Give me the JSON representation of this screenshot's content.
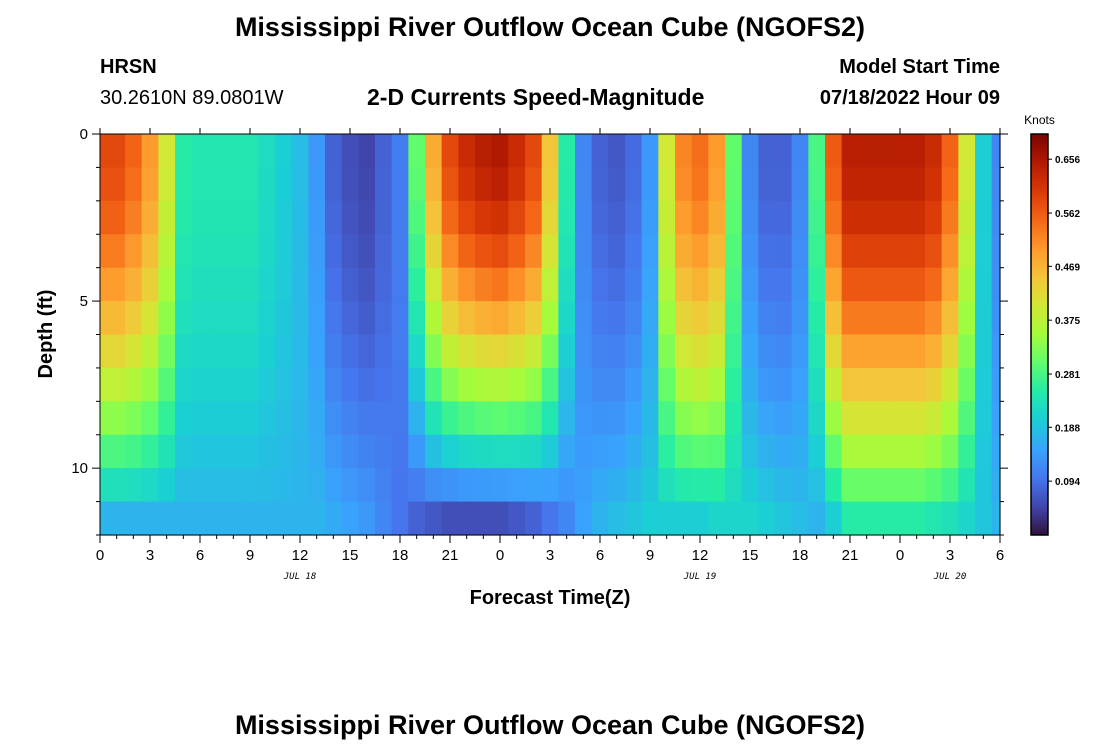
{
  "header": {
    "title_top": "Mississippi River Outflow Ocean Cube (NGOFS2)",
    "title_bottom": "Mississippi River Outflow Ocean Cube (NGOFS2)",
    "station_id": "HRSN",
    "station_coords": "30.2610N  89.0801W",
    "subtitle": "2-D Currents Speed-Magnitude",
    "model_start_label": "Model Start Time",
    "model_start_value": "07/18/2022 Hour 09"
  },
  "chart_data": {
    "type": "heatmap",
    "title": "2-D Currents Speed-Magnitude",
    "xlabel": "Forecast Time(Z)",
    "ylabel": "Depth (ft)",
    "x_tick_labels": [
      "0",
      "3",
      "6",
      "9",
      "12",
      "15",
      "18",
      "21",
      "0",
      "3",
      "6",
      "9",
      "12",
      "15",
      "18",
      "21",
      "0",
      "3",
      "6"
    ],
    "x_range_hours": [
      0,
      54
    ],
    "date_labels": [
      {
        "text": "JUL 18",
        "hour": 12
      },
      {
        "text": "JUL 19",
        "hour": 36
      },
      {
        "text": "JUL 20",
        "hour": 51
      }
    ],
    "y_ticks": [
      0,
      5,
      10
    ],
    "y_range_ft": [
      0,
      12
    ],
    "colorbar": {
      "title": "Knots",
      "ticks": [
        0.094,
        0.188,
        0.281,
        0.375,
        0.469,
        0.562,
        0.656
      ],
      "range": [
        0.0,
        0.7
      ]
    },
    "depth_layers_ft": [
      0.5,
      1.5,
      2.5,
      3.5,
      4.5,
      5.5,
      6.5,
      7.5,
      8.5,
      9.5,
      10.5,
      11.5
    ],
    "time_series_hours": [
      0,
      1,
      2,
      3,
      4,
      5,
      6,
      7,
      8,
      9,
      10,
      11,
      12,
      13,
      14,
      15,
      16,
      17,
      18,
      19,
      20,
      21,
      22,
      23,
      24,
      25,
      26,
      27,
      28,
      29,
      30,
      31,
      32,
      33,
      34,
      35,
      36,
      37,
      38,
      39,
      40,
      41,
      42,
      43,
      44,
      45,
      46,
      47,
      48,
      49,
      50,
      51,
      52,
      53,
      54
    ],
    "speed_profile_knots": {
      "surface": [
        0.58,
        0.58,
        0.55,
        0.5,
        0.4,
        0.25,
        0.24,
        0.24,
        0.24,
        0.24,
        0.22,
        0.2,
        0.18,
        0.14,
        0.08,
        0.06,
        0.05,
        0.08,
        0.11,
        0.3,
        0.48,
        0.58,
        0.62,
        0.64,
        0.65,
        0.62,
        0.58,
        0.45,
        0.25,
        0.12,
        0.08,
        0.07,
        0.09,
        0.14,
        0.4,
        0.52,
        0.54,
        0.5,
        0.3,
        0.12,
        0.08,
        0.08,
        0.12,
        0.28,
        0.56,
        0.64,
        0.64,
        0.64,
        0.64,
        0.64,
        0.62,
        0.55,
        0.4,
        0.2,
        0.12
      ],
      "bottom": [
        0.17,
        0.17,
        0.17,
        0.17,
        0.17,
        0.17,
        0.17,
        0.17,
        0.17,
        0.17,
        0.17,
        0.17,
        0.17,
        0.17,
        0.16,
        0.15,
        0.14,
        0.12,
        0.1,
        0.08,
        0.07,
        0.06,
        0.06,
        0.06,
        0.06,
        0.07,
        0.08,
        0.1,
        0.12,
        0.15,
        0.17,
        0.18,
        0.19,
        0.2,
        0.2,
        0.2,
        0.2,
        0.21,
        0.21,
        0.21,
        0.2,
        0.19,
        0.18,
        0.17,
        0.2,
        0.25,
        0.25,
        0.25,
        0.25,
        0.25,
        0.24,
        0.23,
        0.21,
        0.19,
        0.17
      ]
    },
    "max_speed_knots": 0.656,
    "min_speed_knots": 0.0
  }
}
